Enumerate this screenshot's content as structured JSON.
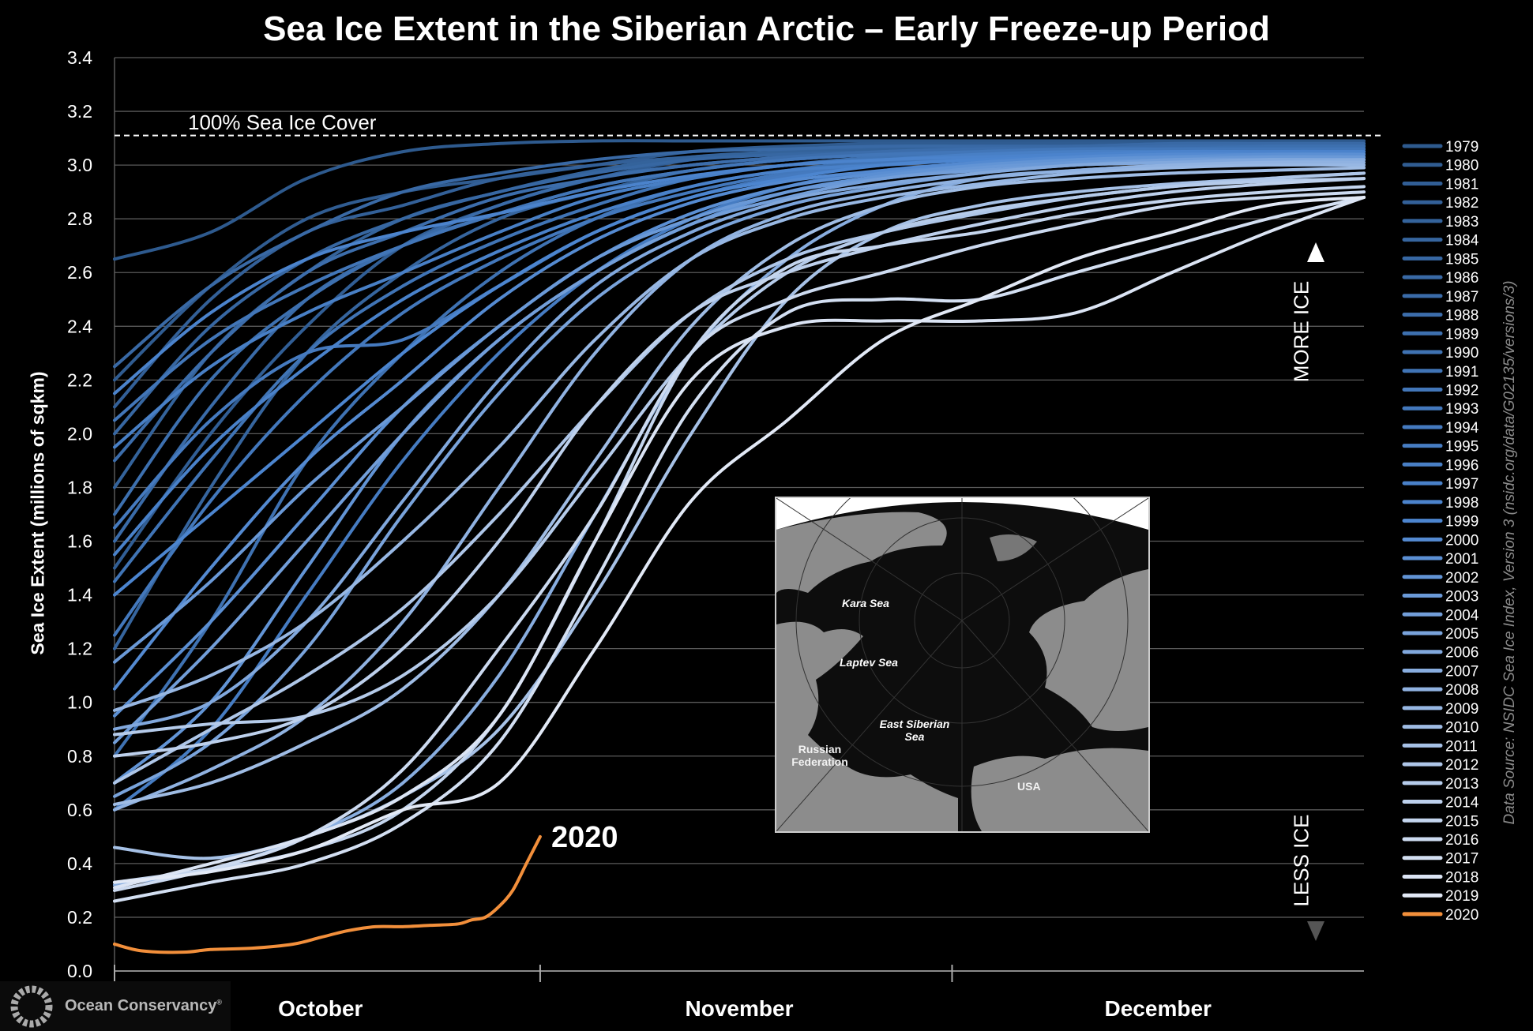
{
  "chart_data": {
    "type": "line",
    "title": "Sea Ice Extent in the Siberian Arctic – Early Freeze-up Period",
    "ylabel": "Sea Ice Extent (millions of sqkm)",
    "xlabel": "",
    "x_units": "day of season from Oct 1",
    "xlim": [
      0,
      91
    ],
    "ylim": [
      0,
      3.4
    ],
    "yticks": [
      "0.0",
      "0.2",
      "0.4",
      "0.6",
      "0.8",
      "1.0",
      "1.2",
      "1.4",
      "1.6",
      "1.8",
      "2.0",
      "2.2",
      "2.4",
      "2.6",
      "2.8",
      "3.0",
      "3.2",
      "3.4"
    ],
    "month_labels": [
      {
        "label": "October",
        "mid": 15
      },
      {
        "label": "November",
        "mid": 45.5
      },
      {
        "label": "December",
        "mid": 76
      }
    ],
    "month_ticks": [
      0,
      31,
      61
    ],
    "grid": true,
    "legend_position": "right",
    "reference_line": {
      "value": 3.11,
      "label": "100% Sea Ice Cover"
    },
    "annotation_2020": "2020",
    "colors": {
      "start": "#2e5a8e",
      "mid": "#4c85cf",
      "end": "#e2e9f6",
      "highlight": "#f28f3b"
    },
    "x": [
      0,
      7,
      14,
      21,
      28,
      35,
      42,
      49,
      56,
      63,
      70,
      77,
      84,
      91
    ],
    "series": [
      {
        "name": "1979",
        "values": [
          2.65,
          2.75,
          2.95,
          3.05,
          3.08,
          3.09,
          3.09,
          3.09,
          3.09,
          3.09,
          3.09,
          3.09,
          3.09,
          3.09
        ]
      },
      {
        "name": "1980",
        "values": [
          2.2,
          2.55,
          2.8,
          2.9,
          2.95,
          3.0,
          3.05,
          3.07,
          3.08,
          3.08,
          3.08,
          3.08,
          3.08,
          3.08
        ]
      },
      {
        "name": "1981",
        "values": [
          1.5,
          2.0,
          2.4,
          2.7,
          2.85,
          2.95,
          3.02,
          3.05,
          3.06,
          3.07,
          3.07,
          3.08,
          3.08,
          3.08
        ]
      },
      {
        "name": "1982",
        "values": [
          2.1,
          2.5,
          2.75,
          2.85,
          2.95,
          3.0,
          3.03,
          3.05,
          3.06,
          3.07,
          3.07,
          3.08,
          3.08,
          3.08
        ]
      },
      {
        "name": "1983",
        "values": [
          1.8,
          2.3,
          2.6,
          2.8,
          2.9,
          2.98,
          3.03,
          3.05,
          3.06,
          3.07,
          3.07,
          3.07,
          3.08,
          3.08
        ]
      },
      {
        "name": "1984",
        "values": [
          1.2,
          1.8,
          2.3,
          2.6,
          2.8,
          2.9,
          2.98,
          3.02,
          3.04,
          3.05,
          3.06,
          3.07,
          3.07,
          3.07
        ]
      },
      {
        "name": "1985",
        "values": [
          2.0,
          2.4,
          2.65,
          2.8,
          2.9,
          2.97,
          3.02,
          3.04,
          3.05,
          3.06,
          3.07,
          3.07,
          3.07,
          3.07
        ]
      },
      {
        "name": "1986",
        "values": [
          2.25,
          2.55,
          2.75,
          2.9,
          2.97,
          3.02,
          3.05,
          3.06,
          3.07,
          3.07,
          3.07,
          3.08,
          3.08,
          3.08
        ]
      },
      {
        "name": "1987",
        "values": [
          1.6,
          2.1,
          2.5,
          2.7,
          2.85,
          2.95,
          3.0,
          3.03,
          3.05,
          3.06,
          3.06,
          3.07,
          3.07,
          3.07
        ]
      },
      {
        "name": "1988",
        "values": [
          1.9,
          2.3,
          2.6,
          2.75,
          2.88,
          2.95,
          3.0,
          3.03,
          3.05,
          3.06,
          3.06,
          3.07,
          3.07,
          3.07
        ]
      },
      {
        "name": "1989",
        "values": [
          1.7,
          2.2,
          2.5,
          2.7,
          2.82,
          2.92,
          2.98,
          3.02,
          3.04,
          3.05,
          3.06,
          3.06,
          3.07,
          3.07
        ]
      },
      {
        "name": "1990",
        "values": [
          0.8,
          1.3,
          1.9,
          2.3,
          2.6,
          2.8,
          2.92,
          2.98,
          3.02,
          3.04,
          3.05,
          3.06,
          3.06,
          3.06
        ]
      },
      {
        "name": "1991",
        "values": [
          1.45,
          1.9,
          2.3,
          2.55,
          2.72,
          2.85,
          2.95,
          3.0,
          3.03,
          3.04,
          3.05,
          3.06,
          3.06,
          3.06
        ]
      },
      {
        "name": "1992",
        "values": [
          2.05,
          2.35,
          2.55,
          2.7,
          2.82,
          2.92,
          2.98,
          3.02,
          3.04,
          3.05,
          3.06,
          3.06,
          3.06,
          3.06
        ]
      },
      {
        "name": "1993",
        "values": [
          1.25,
          1.75,
          2.15,
          2.45,
          2.65,
          2.8,
          2.9,
          2.97,
          3.01,
          3.03,
          3.04,
          3.05,
          3.05,
          3.05
        ]
      },
      {
        "name": "1994",
        "values": [
          1.65,
          2.05,
          2.3,
          2.35,
          2.55,
          2.75,
          2.88,
          2.96,
          3.0,
          3.02,
          3.04,
          3.05,
          3.05,
          3.05
        ]
      },
      {
        "name": "1995",
        "values": [
          0.6,
          0.9,
          1.4,
          1.9,
          2.3,
          2.6,
          2.8,
          2.92,
          2.98,
          3.01,
          3.03,
          3.04,
          3.05,
          3.05
        ]
      },
      {
        "name": "1996",
        "values": [
          1.95,
          2.25,
          2.45,
          2.6,
          2.75,
          2.88,
          2.95,
          3.0,
          3.02,
          3.04,
          3.05,
          3.05,
          3.05,
          3.05
        ]
      },
      {
        "name": "1997",
        "values": [
          1.55,
          1.95,
          2.25,
          2.5,
          2.68,
          2.82,
          2.92,
          2.98,
          3.0,
          3.02,
          3.03,
          3.04,
          3.05,
          3.05
        ]
      },
      {
        "name": "1998",
        "values": [
          2.15,
          2.45,
          2.65,
          2.75,
          2.82,
          2.9,
          2.96,
          3.0,
          3.02,
          3.03,
          3.04,
          3.05,
          3.05,
          3.05
        ]
      },
      {
        "name": "1999",
        "values": [
          1.4,
          1.7,
          2.0,
          2.3,
          2.55,
          2.75,
          2.88,
          2.95,
          3.0,
          3.02,
          3.03,
          3.04,
          3.04,
          3.04
        ]
      },
      {
        "name": "2000",
        "values": [
          1.05,
          1.5,
          1.9,
          2.2,
          2.5,
          2.72,
          2.86,
          2.94,
          2.98,
          3.01,
          3.03,
          3.04,
          3.04,
          3.04
        ]
      },
      {
        "name": "2001",
        "values": [
          0.95,
          1.3,
          1.7,
          2.1,
          2.4,
          2.65,
          2.82,
          2.92,
          2.97,
          3.0,
          3.02,
          3.03,
          3.04,
          3.04
        ]
      },
      {
        "name": "2002",
        "values": [
          0.7,
          1.0,
          1.5,
          2.0,
          2.35,
          2.6,
          2.78,
          2.9,
          2.96,
          3.0,
          3.02,
          3.03,
          3.03,
          3.03
        ]
      },
      {
        "name": "2003",
        "values": [
          1.15,
          1.45,
          1.8,
          2.1,
          2.4,
          2.65,
          2.8,
          2.9,
          2.95,
          2.99,
          3.01,
          3.02,
          3.03,
          3.03
        ]
      },
      {
        "name": "2004",
        "values": [
          0.85,
          1.2,
          1.6,
          2.0,
          2.35,
          2.6,
          2.78,
          2.88,
          2.95,
          2.98,
          3.0,
          3.02,
          3.02,
          3.02
        ]
      },
      {
        "name": "2005",
        "values": [
          0.65,
          0.85,
          1.2,
          1.7,
          2.15,
          2.5,
          2.72,
          2.85,
          2.92,
          2.97,
          3.0,
          3.01,
          3.02,
          3.02
        ]
      },
      {
        "name": "2006",
        "values": [
          0.9,
          1.0,
          1.3,
          1.75,
          2.2,
          2.55,
          2.75,
          2.87,
          2.93,
          2.97,
          3.0,
          3.01,
          3.02,
          3.02
        ]
      },
      {
        "name": "2007",
        "values": [
          0.32,
          0.38,
          0.5,
          0.7,
          1.1,
          1.7,
          2.3,
          2.65,
          2.85,
          2.95,
          2.98,
          3.0,
          3.01,
          3.02
        ]
      },
      {
        "name": "2008",
        "values": [
          0.6,
          0.75,
          0.95,
          1.3,
          1.8,
          2.3,
          2.65,
          2.82,
          2.9,
          2.95,
          2.98,
          3.0,
          3.01,
          3.01
        ]
      },
      {
        "name": "2009",
        "values": [
          0.97,
          1.1,
          1.3,
          1.6,
          1.95,
          2.35,
          2.65,
          2.8,
          2.88,
          2.93,
          2.97,
          2.99,
          3.0,
          3.0
        ]
      },
      {
        "name": "2010",
        "values": [
          0.62,
          0.7,
          0.85,
          1.05,
          1.4,
          1.9,
          2.4,
          2.7,
          2.85,
          2.92,
          2.95,
          2.97,
          2.98,
          2.99
        ]
      },
      {
        "name": "2011",
        "values": [
          0.46,
          0.42,
          0.5,
          0.65,
          0.9,
          1.4,
          2.0,
          2.5,
          2.75,
          2.85,
          2.9,
          2.93,
          2.95,
          2.97
        ]
      },
      {
        "name": "2012",
        "values": [
          0.7,
          0.9,
          1.1,
          1.35,
          1.7,
          2.1,
          2.45,
          2.65,
          2.75,
          2.82,
          2.88,
          2.92,
          2.95,
          2.97
        ]
      },
      {
        "name": "2013",
        "values": [
          0.88,
          0.92,
          0.95,
          1.1,
          1.4,
          1.85,
          2.3,
          2.6,
          2.75,
          2.83,
          2.88,
          2.92,
          2.94,
          2.95
        ]
      },
      {
        "name": "2014",
        "values": [
          0.8,
          0.85,
          0.95,
          1.2,
          1.6,
          2.1,
          2.45,
          2.6,
          2.7,
          2.78,
          2.85,
          2.9,
          2.93,
          2.95
        ]
      },
      {
        "name": "2015",
        "values": [
          0.33,
          0.38,
          0.45,
          0.6,
          0.95,
          1.6,
          2.3,
          2.62,
          2.7,
          2.75,
          2.82,
          2.87,
          2.9,
          2.92
        ]
      },
      {
        "name": "2016",
        "values": [
          0.3,
          0.38,
          0.5,
          0.75,
          1.2,
          1.7,
          2.3,
          2.5,
          2.6,
          2.7,
          2.78,
          2.85,
          2.88,
          2.9
        ]
      },
      {
        "name": "2017",
        "values": [
          0.26,
          0.33,
          0.4,
          0.55,
          0.85,
          1.45,
          2.1,
          2.45,
          2.5,
          2.5,
          2.6,
          2.7,
          2.8,
          2.88
        ]
      },
      {
        "name": "2018",
        "values": [
          0.31,
          0.4,
          0.5,
          0.65,
          0.95,
          1.6,
          2.2,
          2.4,
          2.42,
          2.42,
          2.45,
          2.6,
          2.75,
          2.88
        ]
      },
      {
        "name": "2019",
        "values": [
          0.33,
          0.37,
          0.45,
          0.6,
          0.7,
          1.2,
          1.75,
          2.05,
          2.35,
          2.5,
          2.65,
          2.75,
          2.85,
          2.88
        ]
      }
    ],
    "series_2020": {
      "name": "2020",
      "x": [
        0,
        2,
        5,
        7,
        10,
        13,
        15,
        17,
        19,
        21,
        23,
        25,
        26,
        27,
        28,
        29,
        30,
        31
      ],
      "values": [
        0.1,
        0.075,
        0.07,
        0.08,
        0.085,
        0.1,
        0.125,
        0.15,
        0.165,
        0.165,
        0.17,
        0.175,
        0.19,
        0.2,
        0.24,
        0.3,
        0.4,
        0.5
      ]
    }
  },
  "arrow": {
    "more_label": "MORE ICE",
    "less_label": "LESS ICE"
  },
  "map": {
    "labels": {
      "kara": "Kara Sea",
      "laptev": "Laptev Sea",
      "east_siberian": "East Siberian Sea",
      "russia": "Russian Federation",
      "usa": "USA"
    }
  },
  "source": "Data Source: NSIDC Sea Ice Index, Version 3 (nsidc.org/data/G02135/versions/3)",
  "logo": {
    "text": "Ocean Conservancy",
    "mark": "®"
  }
}
